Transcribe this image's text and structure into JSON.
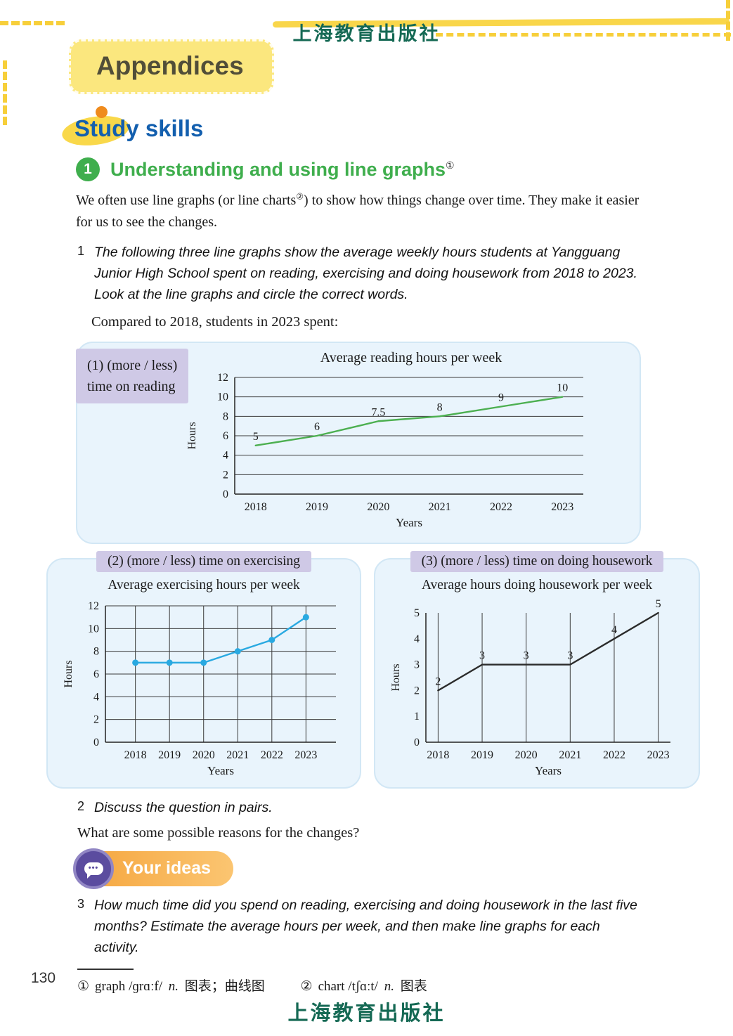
{
  "publisher": {
    "top": "上海教育出版社",
    "bottom": "上海教育出版社"
  },
  "page_number": "130",
  "header": {
    "appendices": "Appendices",
    "section_title": "Study skills"
  },
  "lesson": {
    "number": "1",
    "title": "Understanding and using line graphs",
    "title_footnote_marker": "①"
  },
  "intro": {
    "part1": "We often use line graphs (or line charts",
    "marker": "②",
    "part2": ") to show how things change over time. They make it easier for us to see the changes."
  },
  "task1": {
    "number": "1",
    "instruction": "The following three line graphs show the average weekly hours students at Yangguang Junior High School spent on reading, exercising and doing housework from 2018 to 2023. Look at the line graphs and circle the correct words.",
    "prompt": "Compared to 2018, students in 2023 spent:"
  },
  "chart_data": [
    {
      "id": "reading",
      "type": "line",
      "option_label_line1": "(1)  (more / less)",
      "option_label_line2": "time on reading",
      "title": "Average reading hours per week",
      "categories": [
        "2018",
        "2019",
        "2020",
        "2021",
        "2022",
        "2023"
      ],
      "values": [
        5,
        6,
        7.5,
        8,
        9,
        10
      ],
      "data_labels": [
        "5",
        "6",
        "7.5",
        "8",
        "9",
        "10"
      ],
      "xlabel": "Years",
      "ylabel": "Hours",
      "ylim": [
        0,
        12
      ],
      "ytick_step": 2,
      "line_color": "#4caf50",
      "markers": false,
      "h_grid": true,
      "v_grid": false
    },
    {
      "id": "exercising",
      "type": "line",
      "option_label": "(2)  (more / less) time on exercising",
      "title": "Average exercising hours per week",
      "categories": [
        "2018",
        "2019",
        "2020",
        "2021",
        "2022",
        "2023"
      ],
      "values": [
        7,
        7,
        7,
        8,
        9,
        11
      ],
      "data_labels": null,
      "xlabel": "Years",
      "ylabel": "Hours",
      "ylim": [
        0,
        12
      ],
      "ytick_step": 2,
      "line_color": "#29a9e1",
      "markers": true,
      "h_grid": true,
      "v_grid": true
    },
    {
      "id": "housework",
      "type": "line",
      "option_label": "(3)  (more / less) time on doing housework",
      "title": "Average hours doing housework per week",
      "categories": [
        "2018",
        "2019",
        "2020",
        "2021",
        "2022",
        "2023"
      ],
      "values": [
        2,
        3,
        3,
        3,
        4,
        5
      ],
      "data_labels": [
        "2",
        "3",
        "3",
        "3",
        "4",
        "5"
      ],
      "xlabel": "Years",
      "ylabel": "Hours",
      "ylim": [
        0,
        5
      ],
      "ytick_step": 1,
      "line_color": "#2b2b2b",
      "markers": false,
      "h_grid": false,
      "v_grid": true
    }
  ],
  "task2": {
    "number": "2",
    "instruction": "Discuss the question in pairs.",
    "question": "What are some possible reasons for the changes?"
  },
  "your_ideas": {
    "label": "Your ideas"
  },
  "task3": {
    "number": "3",
    "instruction": "How much time did you spend on reading, exercising and doing housework in the last five months? Estimate the average hours per week, and then make line graphs for each activity."
  },
  "footnotes": [
    {
      "marker": "①",
      "word": "graph",
      "ipa": "/ɡrɑːf/",
      "pos": "n.",
      "meaning": "图表；曲线图"
    },
    {
      "marker": "②",
      "word": "chart",
      "ipa": "/tʃɑːt/",
      "pos": "n.",
      "meaning": "图表"
    }
  ]
}
